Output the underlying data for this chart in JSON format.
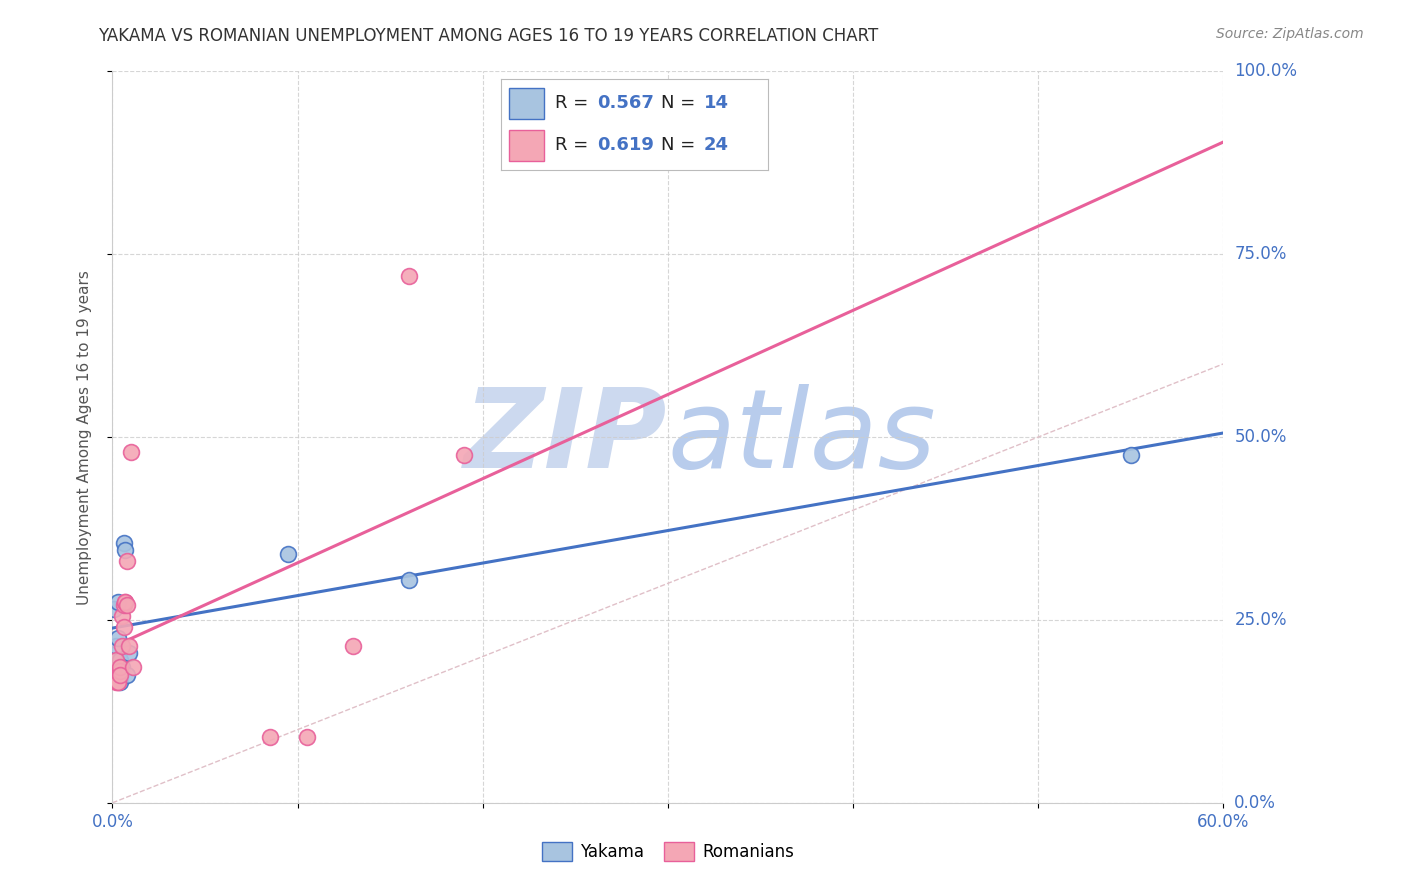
{
  "title": "YAKAMA VS ROMANIAN UNEMPLOYMENT AMONG AGES 16 TO 19 YEARS CORRELATION CHART",
  "source": "Source: ZipAtlas.com",
  "ylabel": "Unemployment Among Ages 16 to 19 years",
  "xlim": [
    0.0,
    0.6
  ],
  "ylim": [
    0.0,
    1.0
  ],
  "xticks": [
    0.0,
    0.1,
    0.2,
    0.3,
    0.4,
    0.5,
    0.6
  ],
  "yticks": [
    0.0,
    0.25,
    0.5,
    0.75,
    1.0
  ],
  "yakama_x": [
    0.001,
    0.002,
    0.003,
    0.003,
    0.004,
    0.004,
    0.005,
    0.006,
    0.007,
    0.095,
    0.16,
    0.55,
    0.008,
    0.009
  ],
  "yakama_y": [
    0.265,
    0.215,
    0.275,
    0.225,
    0.195,
    0.165,
    0.185,
    0.355,
    0.345,
    0.34,
    0.305,
    0.475,
    0.175,
    0.205
  ],
  "romanian_x": [
    0.001,
    0.002,
    0.002,
    0.003,
    0.003,
    0.004,
    0.004,
    0.004,
    0.005,
    0.005,
    0.006,
    0.006,
    0.007,
    0.007,
    0.008,
    0.008,
    0.009,
    0.01,
    0.011,
    0.085,
    0.105,
    0.13,
    0.16,
    0.19
  ],
  "romanian_y": [
    0.175,
    0.195,
    0.165,
    0.165,
    0.165,
    0.18,
    0.185,
    0.175,
    0.255,
    0.215,
    0.24,
    0.27,
    0.275,
    0.275,
    0.27,
    0.33,
    0.215,
    0.48,
    0.185,
    0.09,
    0.09,
    0.215,
    0.72,
    0.475
  ],
  "yakama_color": "#a8c4e0",
  "romanian_color": "#f4a7b5",
  "yakama_line_color": "#4472c4",
  "romanian_line_color": "#e8609a",
  "yakama_R": 0.567,
  "yakama_N": 14,
  "romanian_R": 0.619,
  "romanian_N": 24,
  "legend_label_yakama": "Yakama",
  "legend_label_romanian": "Romanians",
  "background_color": "#ffffff",
  "grid_color": "#cccccc",
  "title_color": "#333333",
  "watermark_zip": "ZIP",
  "watermark_atlas": "atlas",
  "watermark_color_zip": "#c5d8f0",
  "watermark_color_atlas": "#b8cce8"
}
